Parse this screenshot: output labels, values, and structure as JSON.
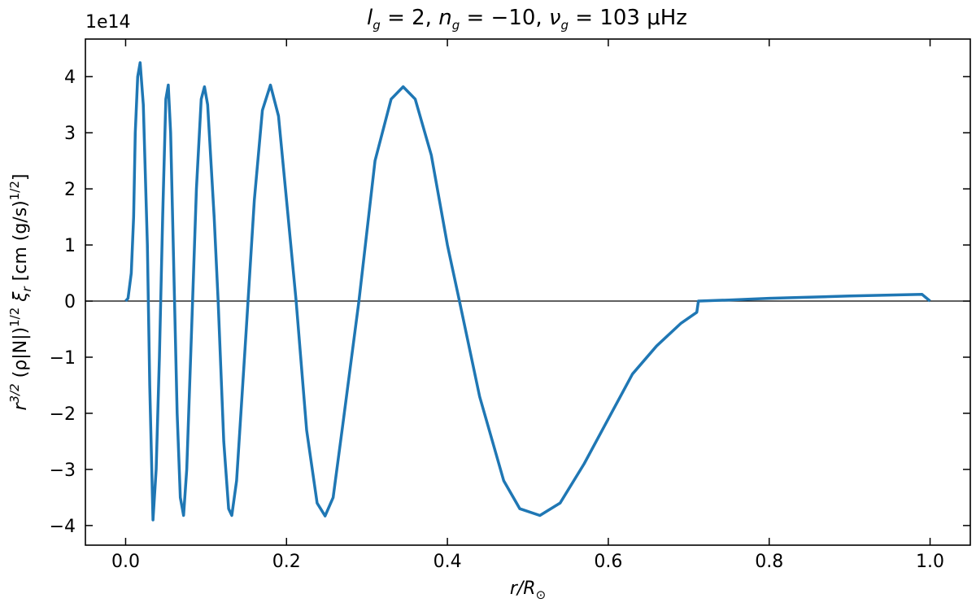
{
  "chart_data": {
    "type": "line",
    "title": [
      "l",
      "g",
      " = 2, ",
      "n",
      "g",
      " = −10, ",
      "ν",
      "g",
      " = 103 μHz"
    ],
    "xlabel": [
      "r/R",
      "⊙"
    ],
    "ylabel": [
      "r",
      "3/2",
      " (ρ|N|)",
      "1/2",
      " ξ",
      "r",
      " [cm (g/s)",
      "1/2",
      "]"
    ],
    "offset_label": "1e14",
    "x": [
      0,
      0.003,
      0.007,
      0.01,
      0.012,
      0.015,
      0.018,
      0.022,
      0.027,
      0.03,
      0.034,
      0.038,
      0.042,
      0.046,
      0.05,
      0.053,
      0.056,
      0.06,
      0.064,
      0.068,
      0.072,
      0.076,
      0.082,
      0.088,
      0.094,
      0.098,
      0.102,
      0.11,
      0.115,
      0.122,
      0.128,
      0.132,
      0.138,
      0.15,
      0.16,
      0.17,
      0.18,
      0.19,
      0.2,
      0.212,
      0.225,
      0.238,
      0.248,
      0.258,
      0.27,
      0.29,
      0.31,
      0.33,
      0.345,
      0.36,
      0.38,
      0.4,
      0.415,
      0.44,
      0.47,
      0.49,
      0.515,
      0.54,
      0.57,
      0.6,
      0.63,
      0.66,
      0.69,
      0.71,
      0.712,
      0.75,
      0.8,
      0.9,
      0.99,
      1.0
    ],
    "series": [
      {
        "name": "xi_r",
        "color": "#1f77b4",
        "values": [
          0,
          0.05,
          0.5,
          1.5,
          3,
          4.0,
          4.25,
          3.5,
          1,
          -1.5,
          -3.9,
          -3,
          -1,
          1.5,
          3.6,
          3.85,
          3,
          0.5,
          -2,
          -3.5,
          -3.82,
          -3,
          -0.5,
          2,
          3.6,
          3.82,
          3.5,
          1.5,
          0,
          -2.5,
          -3.7,
          -3.82,
          -3.2,
          -0.5,
          1.8,
          3.4,
          3.85,
          3.3,
          1.8,
          0,
          -2.3,
          -3.6,
          -3.83,
          -3.5,
          -2.2,
          0,
          2.5,
          3.6,
          3.82,
          3.6,
          2.6,
          1,
          0,
          -1.7,
          -3.2,
          -3.7,
          -3.82,
          -3.6,
          -2.9,
          -2.1,
          -1.3,
          -0.8,
          -0.4,
          -0.2,
          0,
          0.02,
          0.05,
          0.09,
          0.12,
          0
        ]
      }
    ],
    "xlim": [
      -0.05,
      1.05
    ],
    "ylim": [
      -4.35,
      4.67
    ],
    "xticks": [
      {
        "value": 0,
        "label": "0.0"
      },
      0.2,
      0.4,
      0.6,
      0.8,
      {
        "value": 1,
        "label": "1.0"
      }
    ],
    "yticks": [
      {
        "value": -4,
        "label": "−4"
      },
      {
        "value": -3,
        "label": "−3"
      },
      {
        "value": -2,
        "label": "−2"
      },
      {
        "value": -1,
        "label": "−1"
      },
      0,
      1,
      2,
      3,
      4
    ],
    "hline": 0
  }
}
